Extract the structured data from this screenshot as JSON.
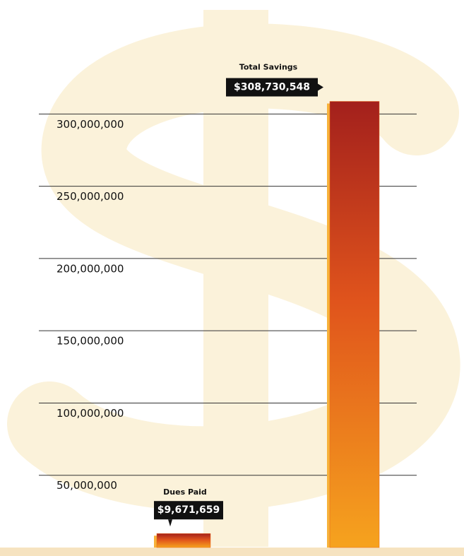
{
  "chart_data": {
    "type": "bar",
    "categories": [
      "Dues Paid",
      "Total Savings"
    ],
    "values": [
      9671659,
      308730548
    ],
    "value_labels": [
      "$9,671,659",
      "$308,730,548"
    ],
    "ylim": [
      0,
      330000000
    ],
    "yticks": [
      {
        "value": 50000000,
        "label": "50,000,000"
      },
      {
        "value": 100000000,
        "label": "100,000,000"
      },
      {
        "value": 150000000,
        "label": "150,000,000"
      },
      {
        "value": 200000000,
        "label": "200,000,000"
      },
      {
        "value": 250000000,
        "label": "250,000,000"
      },
      {
        "value": 300000000,
        "label": "300,000,000"
      }
    ],
    "grid": true,
    "colors": [
      "#e8671c",
      "#e8671c"
    ]
  }
}
